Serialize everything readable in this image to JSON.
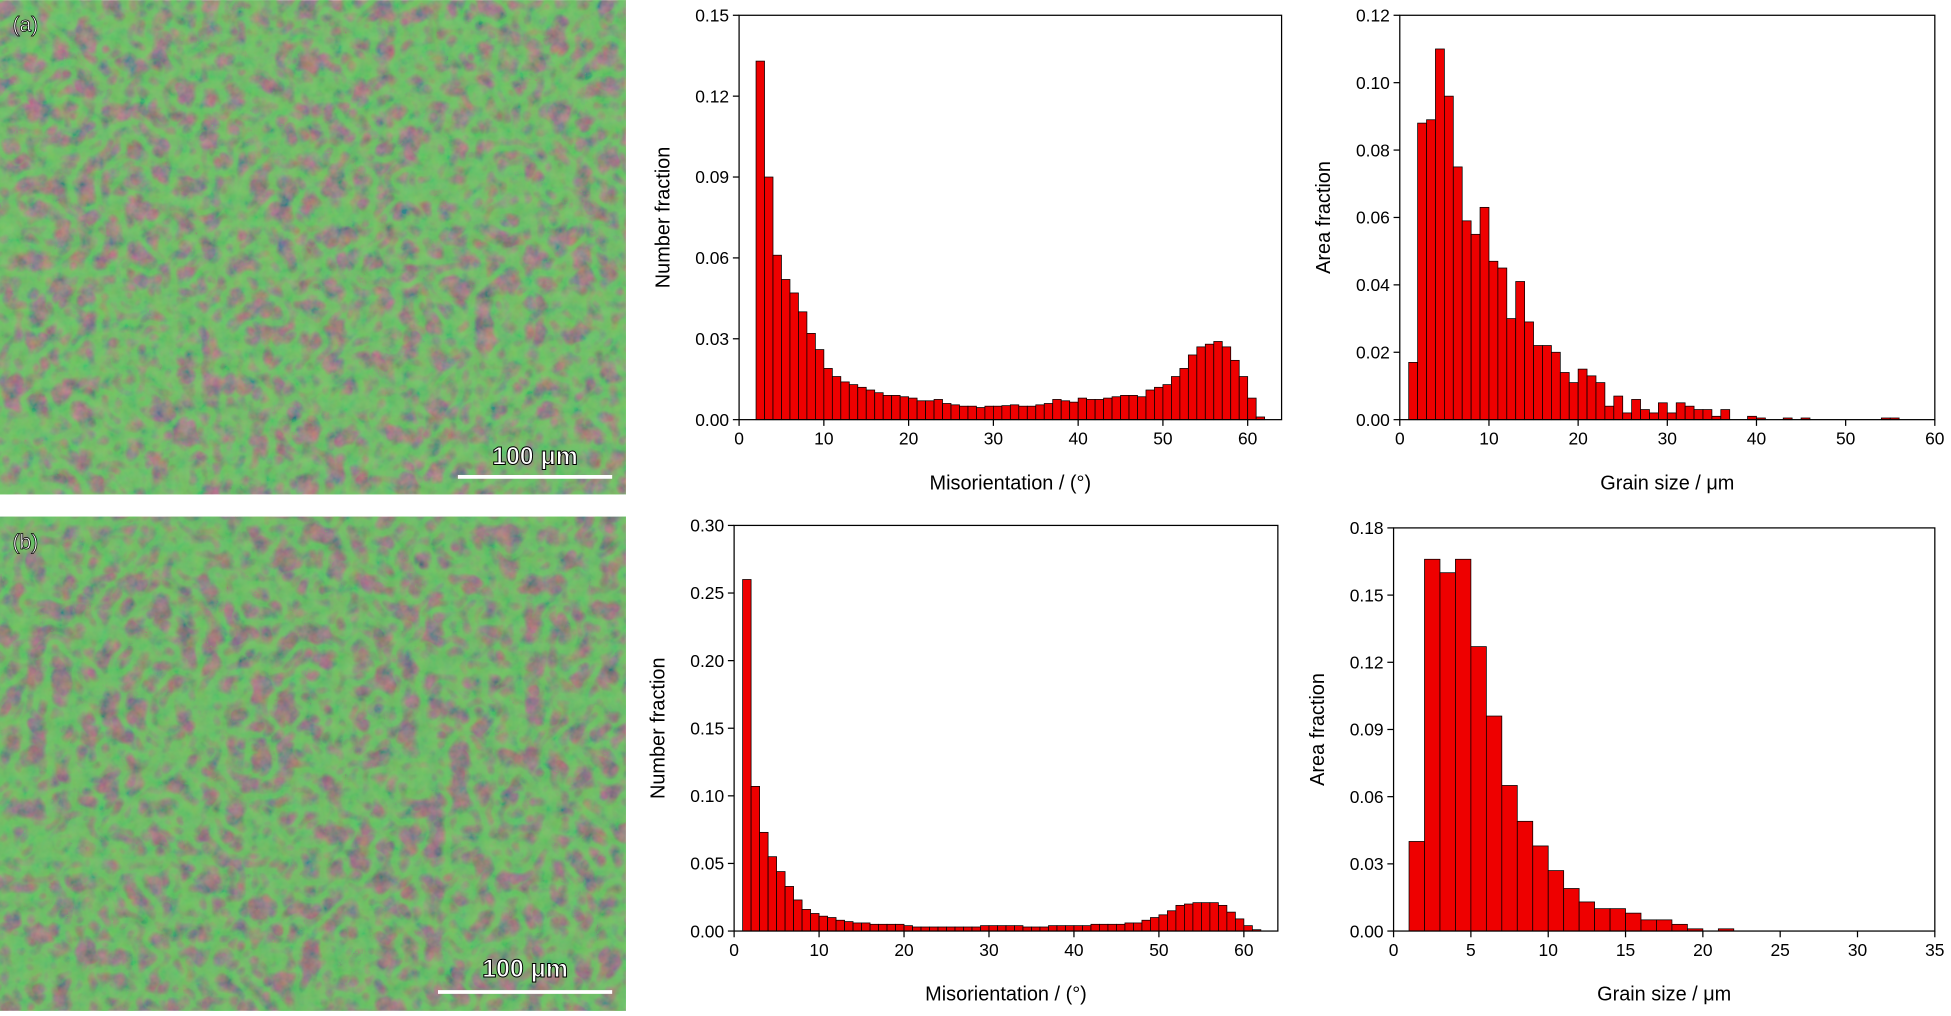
{
  "images": [
    {
      "label": "(a)",
      "scale_bar": "100 μm"
    },
    {
      "label": "(b)",
      "scale_bar": "100 μm"
    }
  ],
  "chart_data": [
    {
      "type": "histogram",
      "xlabel": "Misorientation / (°)",
      "ylabel": "Number fraction",
      "color": "#ee0000",
      "xlim": [
        0,
        64
      ],
      "xticks": [
        0,
        10,
        20,
        30,
        40,
        50,
        60
      ],
      "ylim": [
        0,
        0.15
      ],
      "yticks": [
        {
          "value": 0,
          "label": "0.00"
        },
        0.03,
        0.06,
        0.09,
        0.12,
        0.15
      ],
      "bins": [
        2,
        3,
        4,
        5,
        6,
        7,
        8,
        9,
        10,
        11,
        12,
        13,
        14,
        15,
        16,
        17,
        18,
        19,
        20,
        21,
        22,
        23,
        24,
        25,
        26,
        27,
        28,
        29,
        30,
        31,
        32,
        33,
        34,
        35,
        36,
        37,
        38,
        39,
        40,
        41,
        42,
        43,
        44,
        45,
        46,
        47,
        48,
        49,
        50,
        51,
        52,
        53,
        54,
        55,
        56,
        57,
        58,
        59,
        60,
        61,
        62
      ],
      "values": [
        0.133,
        0.09,
        0.061,
        0.052,
        0.047,
        0.04,
        0.032,
        0.026,
        0.019,
        0.016,
        0.014,
        0.013,
        0.012,
        0.011,
        0.01,
        0.009,
        0.009,
        0.0085,
        0.008,
        0.007,
        0.007,
        0.0075,
        0.006,
        0.0055,
        0.005,
        0.005,
        0.0045,
        0.005,
        0.005,
        0.0052,
        0.0055,
        0.005,
        0.005,
        0.0055,
        0.006,
        0.0075,
        0.007,
        0.0065,
        0.008,
        0.0075,
        0.0075,
        0.008,
        0.0085,
        0.009,
        0.009,
        0.0085,
        0.011,
        0.012,
        0.013,
        0.016,
        0.019,
        0.024,
        0.027,
        0.028,
        0.029,
        0.027,
        0.022,
        0.016,
        0.008,
        0.001
      ]
    },
    {
      "type": "histogram",
      "xlabel": "Grain size / μm",
      "ylabel": "Area fraction",
      "color": "#ee0000",
      "xlim": [
        0,
        60
      ],
      "xticks": [
        0,
        10,
        20,
        30,
        40,
        50,
        60
      ],
      "ylim": [
        0,
        0.12
      ],
      "yticks": [
        {
          "value": 0,
          "label": "0.00"
        },
        0.02,
        0.04,
        0.06,
        0.08,
        {
          "value": 0.1,
          "label": "0.10"
        },
        0.12
      ],
      "bins": [
        1,
        2,
        3,
        4,
        5,
        6,
        7,
        8,
        9,
        10,
        11,
        12,
        13,
        14,
        15,
        16,
        17,
        18,
        19,
        20,
        21,
        22,
        23,
        24,
        25,
        26,
        27,
        28,
        29,
        30,
        31,
        32,
        33,
        34,
        35,
        36,
        37,
        38,
        39,
        40,
        41,
        42,
        43,
        44,
        45,
        46,
        47,
        48,
        49,
        50,
        51,
        52,
        53,
        54,
        55,
        56
      ],
      "values": [
        0.017,
        0.088,
        0.089,
        0.11,
        0.096,
        0.075,
        0.059,
        0.055,
        0.063,
        0.047,
        0.045,
        0.03,
        0.041,
        0.029,
        0.022,
        0.022,
        0.02,
        0.014,
        0.011,
        0.015,
        0.013,
        0.011,
        0.004,
        0.007,
        0.002,
        0.006,
        0.003,
        0.002,
        0.005,
        0.002,
        0.005,
        0.004,
        0.003,
        0.003,
        0.001,
        0.003,
        0,
        0,
        0.001,
        0.0005,
        0,
        0,
        0.0005,
        0,
        0.0005,
        0,
        0,
        0,
        0,
        0,
        0,
        0,
        0,
        0.0005,
        0.0005
      ]
    },
    {
      "type": "histogram",
      "xlabel": "Misorientation / (°)",
      "ylabel": "Number fraction",
      "color": "#ee0000",
      "xlim": [
        0,
        64
      ],
      "xticks": [
        0,
        10,
        20,
        30,
        40,
        50,
        60
      ],
      "ylim": [
        0,
        0.3
      ],
      "yticks": [
        {
          "value": 0,
          "label": "0.00"
        },
        0.05,
        {
          "value": 0.1,
          "label": "0.10"
        },
        0.15,
        {
          "value": 0.2,
          "label": "0.20"
        },
        0.25,
        {
          "value": 0.3,
          "label": "0.30"
        }
      ],
      "bins": [
        1,
        2,
        3,
        4,
        5,
        6,
        7,
        8,
        9,
        10,
        11,
        12,
        13,
        14,
        15,
        16,
        17,
        18,
        19,
        20,
        21,
        22,
        23,
        24,
        25,
        26,
        27,
        28,
        29,
        30,
        31,
        32,
        33,
        34,
        35,
        36,
        37,
        38,
        39,
        40,
        41,
        42,
        43,
        44,
        45,
        46,
        47,
        48,
        49,
        50,
        51,
        52,
        53,
        54,
        55,
        56,
        57,
        58,
        59,
        60,
        61,
        62
      ],
      "values": [
        0.26,
        0.107,
        0.073,
        0.055,
        0.044,
        0.033,
        0.023,
        0.016,
        0.013,
        0.011,
        0.01,
        0.008,
        0.007,
        0.006,
        0.006,
        0.005,
        0.005,
        0.005,
        0.005,
        0.004,
        0.003,
        0.003,
        0.003,
        0.003,
        0.003,
        0.003,
        0.003,
        0.003,
        0.004,
        0.004,
        0.004,
        0.004,
        0.004,
        0.003,
        0.003,
        0.003,
        0.004,
        0.004,
        0.004,
        0.004,
        0.004,
        0.005,
        0.005,
        0.005,
        0.005,
        0.006,
        0.006,
        0.008,
        0.01,
        0.012,
        0.015,
        0.019,
        0.02,
        0.021,
        0.021,
        0.021,
        0.019,
        0.014,
        0.009,
        0.004,
        0.001
      ]
    },
    {
      "type": "histogram",
      "xlabel": "Grain size / μm",
      "ylabel": "Area fraction",
      "color": "#ee0000",
      "xlim": [
        0,
        35
      ],
      "xticks": [
        0,
        5,
        10,
        15,
        20,
        25,
        30,
        35
      ],
      "ylim": [
        0,
        0.18
      ],
      "yticks": [
        {
          "value": 0,
          "label": "0.00"
        },
        0.03,
        0.06,
        0.09,
        0.12,
        0.15,
        0.18
      ],
      "bins": [
        1,
        2,
        3,
        4,
        5,
        6,
        7,
        8,
        9,
        10,
        11,
        12,
        13,
        14,
        15,
        16,
        17,
        18,
        19,
        20,
        21,
        22
      ],
      "values": [
        0.04,
        0.166,
        0.16,
        0.166,
        0.127,
        0.096,
        0.065,
        0.049,
        0.038,
        0.027,
        0.019,
        0.013,
        0.01,
        0.01,
        0.008,
        0.005,
        0.005,
        0.003,
        0.001,
        0,
        0.001
      ]
    }
  ]
}
